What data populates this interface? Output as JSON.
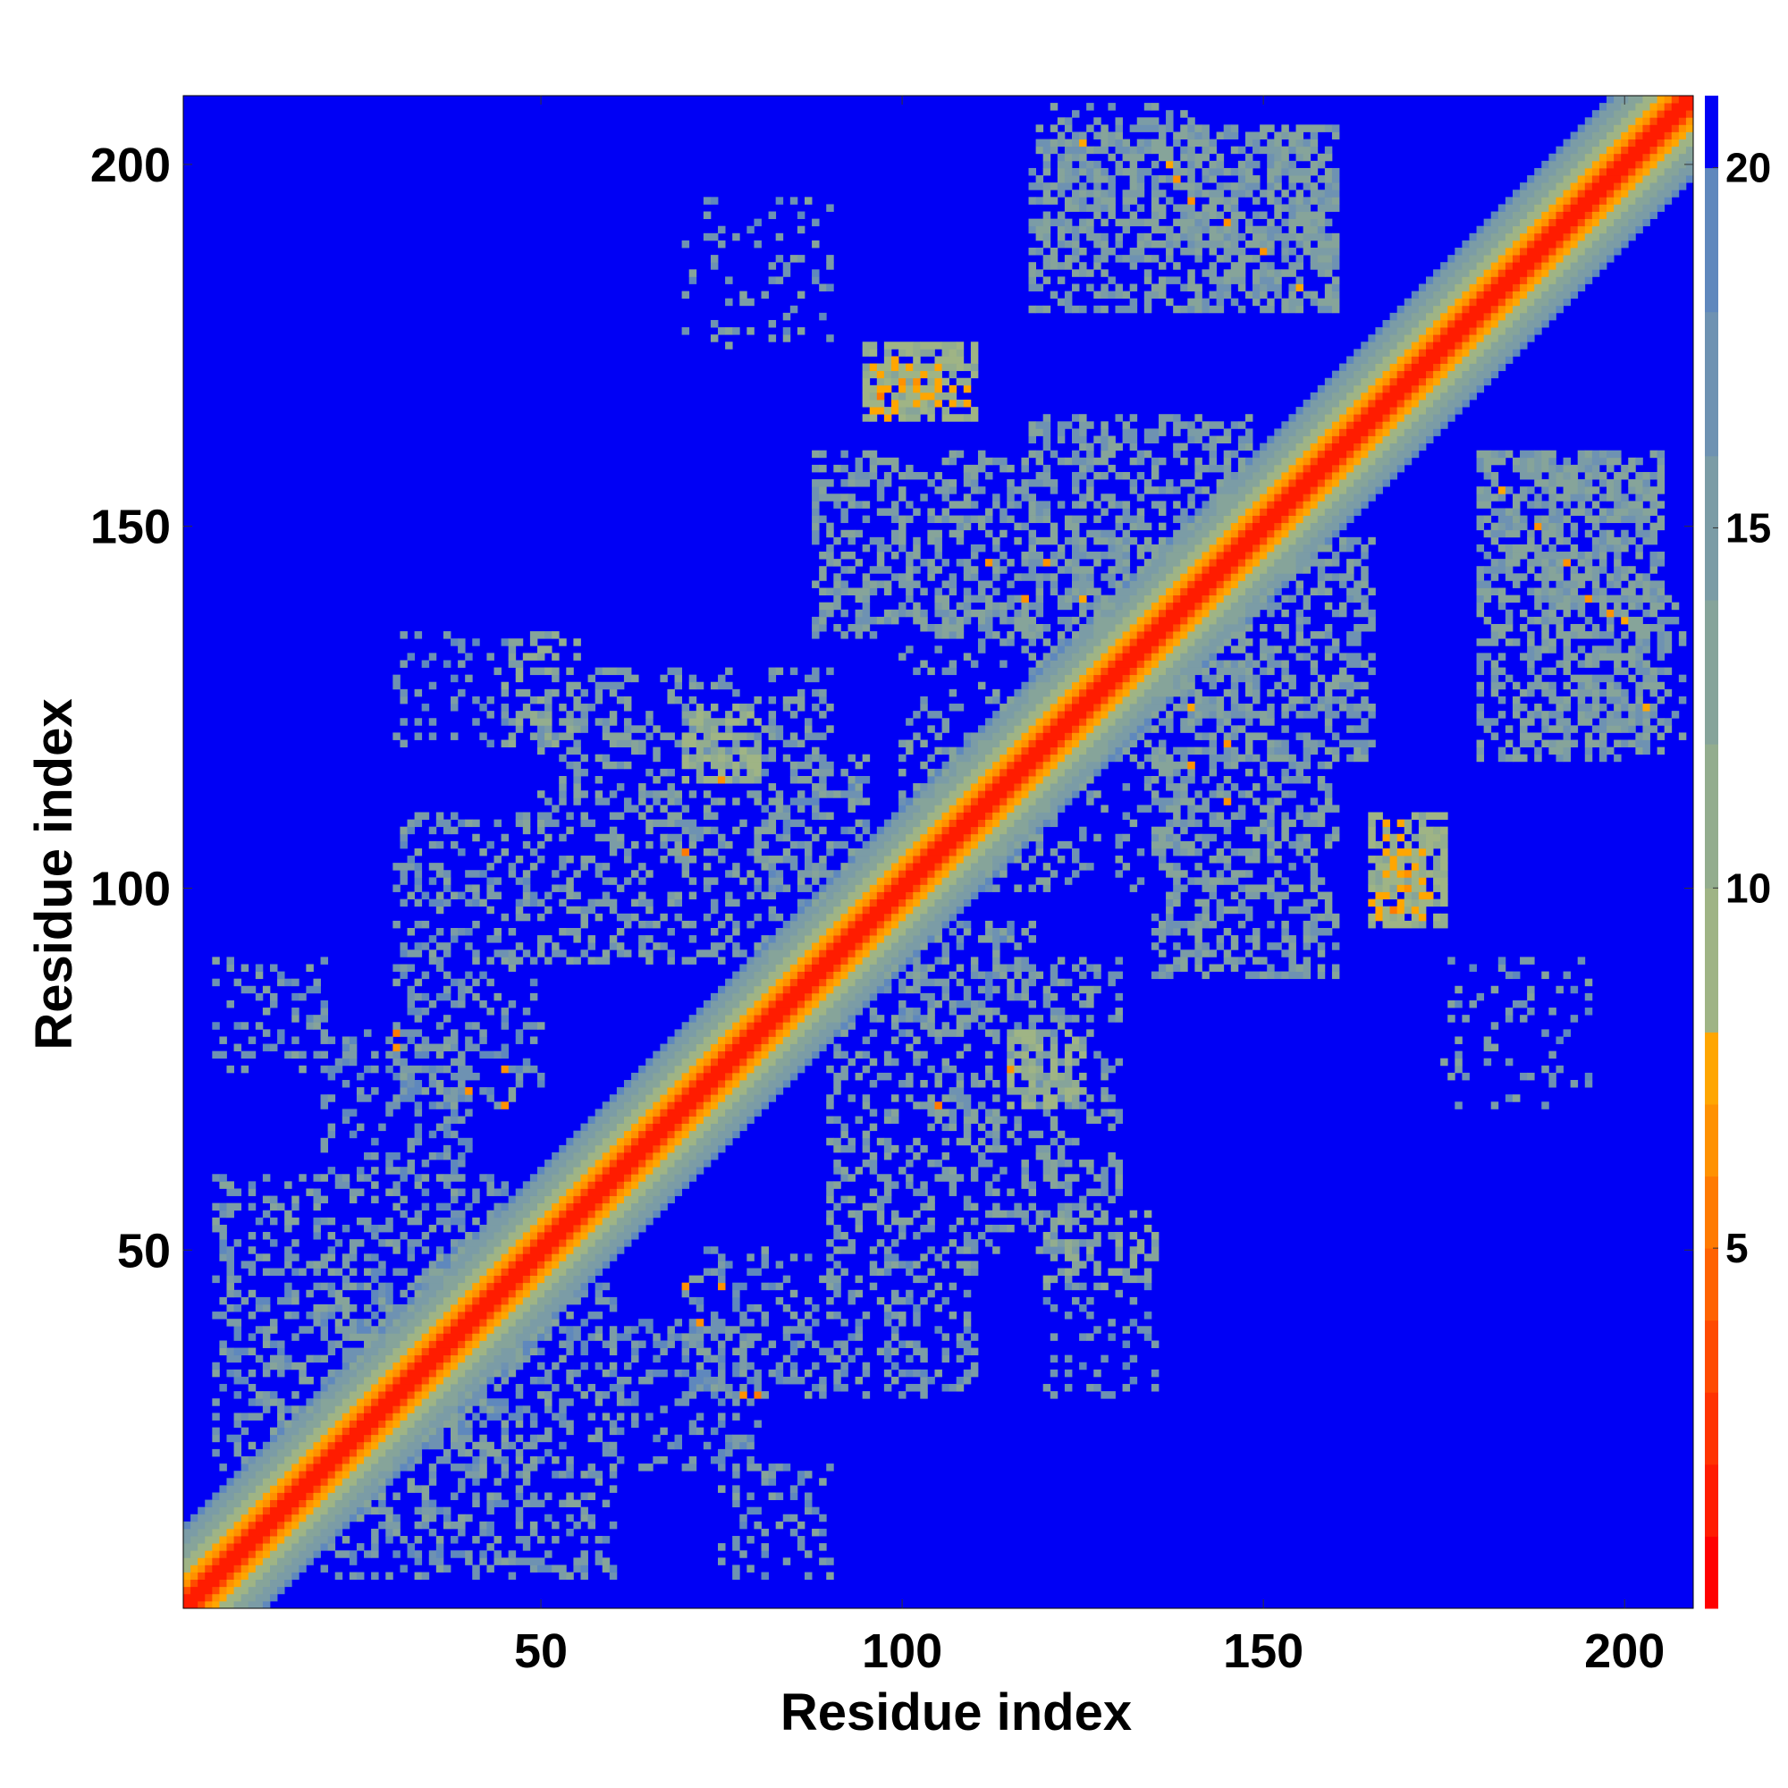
{
  "chart_data": {
    "type": "heatmap",
    "title": "",
    "xlabel": "Residue index",
    "ylabel": "Residue index",
    "xlim": [
      1,
      209
    ],
    "ylim": [
      1,
      209
    ],
    "n_residues": 209,
    "x_ticks": [
      50,
      100,
      150,
      200
    ],
    "y_ticks": [
      50,
      100,
      150,
      200
    ],
    "colorbar": {
      "min": 0,
      "max": 21,
      "ticks": [
        5,
        10,
        15,
        20
      ],
      "levels": [
        {
          "from": 0,
          "to": 1,
          "color": "#ff0000"
        },
        {
          "from": 1,
          "to": 2,
          "color": "#ff1c00"
        },
        {
          "from": 2,
          "to": 3,
          "color": "#ff3300"
        },
        {
          "from": 3,
          "to": 4,
          "color": "#ff4a00"
        },
        {
          "from": 4,
          "to": 5,
          "color": "#ff6200"
        },
        {
          "from": 5,
          "to": 6,
          "color": "#ff7a00"
        },
        {
          "from": 6,
          "to": 7,
          "color": "#ff9100"
        },
        {
          "from": 7,
          "to": 8,
          "color": "#ffa600"
        },
        {
          "from": 8,
          "to": 10,
          "color": "#9fb485"
        },
        {
          "from": 10,
          "to": 12,
          "color": "#93ad8e"
        },
        {
          "from": 12,
          "to": 14,
          "color": "#86a49a"
        },
        {
          "from": 14,
          "to": 16,
          "color": "#7b9ca6"
        },
        {
          "from": 16,
          "to": 18,
          "color": "#6e92b2"
        },
        {
          "from": 18,
          "to": 20,
          "color": "#5f88bd"
        },
        {
          "from": 20,
          "to": 21,
          "color": "#0000f5"
        }
      ]
    },
    "background_value": 21,
    "diagonal_band": [
      {
        "offset_max": 1,
        "value": 1
      },
      {
        "offset_max": 2,
        "value": 3
      },
      {
        "offset_max": 3,
        "value": 6.5
      },
      {
        "offset_max": 4,
        "value": 7.5
      },
      {
        "offset_max": 6,
        "value": 9
      },
      {
        "offset_max": 8,
        "value": 12
      },
      {
        "offset_max": 10,
        "value": 15
      },
      {
        "offset_max": 11,
        "value": 18
      }
    ],
    "contact_regions": [
      {
        "i": [
          20,
          60
        ],
        "j": [
          5,
          45
        ],
        "value": 16,
        "density": 0.35
      },
      {
        "i": [
          70,
          110
        ],
        "j": [
          30,
          50
        ],
        "value": 16,
        "density": 0.3
      },
      {
        "i": [
          60,
          80
        ],
        "j": [
          20,
          40
        ],
        "value": 17,
        "density": 0.28
      },
      {
        "i": [
          75,
          90
        ],
        "j": [
          5,
          20
        ],
        "value": 16,
        "density": 0.22
      },
      {
        "i": [
          90,
          130
        ],
        "j": [
          50,
          90
        ],
        "value": 15,
        "density": 0.3
      },
      {
        "i": [
          115,
          125
        ],
        "j": [
          70,
          80
        ],
        "value": 11,
        "density": 0.55
      },
      {
        "i": [
          100,
          140
        ],
        "j": [
          100,
          120
        ],
        "value": 15,
        "density": 0.2
      },
      {
        "i": [
          45,
          55
        ],
        "j": [
          120,
          135
        ],
        "value": 13,
        "density": 0.35
      },
      {
        "i": [
          80,
          95
        ],
        "j": [
          100,
          118
        ],
        "value": 16,
        "density": 0.35
      },
      {
        "i": [
          135,
          160
        ],
        "j": [
          88,
          118
        ],
        "value": 15,
        "density": 0.45
      },
      {
        "i": [
          118,
          148
        ],
        "j": [
          125,
          165
        ],
        "value": 15,
        "density": 0.45
      },
      {
        "i": [
          165,
          172
        ],
        "j": [
          96,
          105
        ],
        "value": 10,
        "density": 0.7
      },
      {
        "i": [
          180,
          205
        ],
        "j": [
          118,
          160
        ],
        "value": 15,
        "density": 0.45
      },
      {
        "i": [
          140,
          160
        ],
        "j": [
          180,
          205
        ],
        "value": 15,
        "density": 0.45
      },
      {
        "i": [
          120,
          140
        ],
        "j": [
          190,
          208
        ],
        "value": 15,
        "density": 0.3
      },
      {
        "i": [
          95,
          110
        ],
        "j": [
          165,
          175
        ],
        "value": 10,
        "density": 0.6
      },
      {
        "i": [
          70,
          90
        ],
        "j": [
          175,
          195
        ],
        "value": 16,
        "density": 0.15
      },
      {
        "i": [
          120,
          135
        ],
        "j": [
          30,
          45
        ],
        "value": 17,
        "density": 0.2
      }
    ],
    "close_contacts": [
      {
        "i": 30,
        "j": 78,
        "value": 6
      },
      {
        "i": 40,
        "j": 72,
        "value": 6
      },
      {
        "i": 80,
        "j": 30,
        "value": 5
      },
      {
        "i": 70,
        "j": 45,
        "value": 6
      },
      {
        "i": 75,
        "j": 45,
        "value": 6
      },
      {
        "i": 115,
        "j": 75,
        "value": 6
      },
      {
        "i": 105,
        "j": 70,
        "value": 5
      },
      {
        "i": 170,
        "j": 102,
        "value": 6
      },
      {
        "i": 168,
        "j": 97,
        "value": 5
      },
      {
        "i": 145,
        "j": 192,
        "value": 6
      },
      {
        "i": 150,
        "j": 188,
        "value": 6
      },
      {
        "i": 155,
        "j": 183,
        "value": 7
      },
      {
        "i": 188,
        "j": 150,
        "value": 6
      },
      {
        "i": 195,
        "j": 140,
        "value": 6
      },
      {
        "i": 200,
        "j": 137,
        "value": 7
      },
      {
        "i": 140,
        "j": 117,
        "value": 6
      },
      {
        "i": 145,
        "j": 112,
        "value": 6
      },
      {
        "i": 120,
        "j": 145,
        "value": 6
      },
      {
        "i": 125,
        "j": 140,
        "value": 7
      },
      {
        "i": 100,
        "j": 170,
        "value": 6
      },
      {
        "i": 138,
        "j": 198,
        "value": 6
      },
      {
        "i": 125,
        "j": 203,
        "value": 7
      }
    ]
  }
}
